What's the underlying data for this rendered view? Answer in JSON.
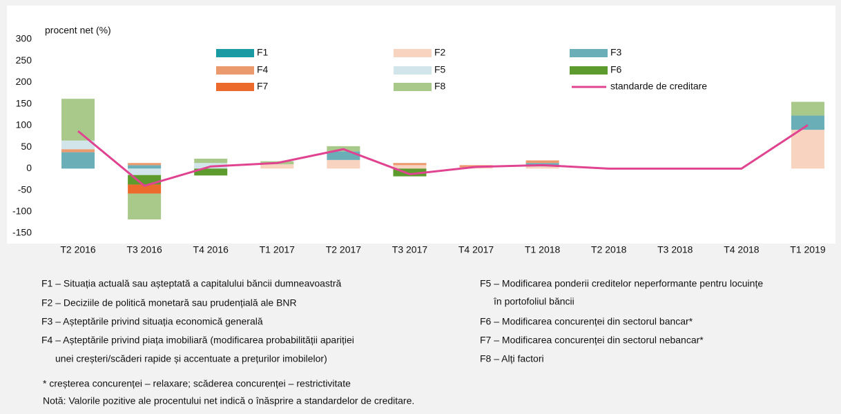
{
  "chart_data": {
    "type": "stacked-bar-line",
    "y_label": "procent net (%)",
    "categories": [
      "T2 2016",
      "T3 2016",
      "T4 2016",
      "T1 2017",
      "T2 2017",
      "T3 2017",
      "T4 2017",
      "T1 2018",
      "T2 2018",
      "T3 2018",
      "T4 2018",
      "T1 2019"
    ],
    "ylim": [
      -150,
      300
    ],
    "yticks": [
      -150,
      -100,
      -50,
      0,
      50,
      100,
      150,
      200,
      250,
      300
    ],
    "grid": false,
    "series": [
      {
        "name": "F1",
        "color": "#1a9ba3",
        "values": [
          0,
          0,
          0,
          0,
          0,
          0,
          0,
          0,
          0,
          0,
          0,
          0
        ]
      },
      {
        "name": "F2",
        "color": "#f8d3c0",
        "values": [
          0,
          0,
          0,
          10,
          20,
          8,
          3,
          5,
          0,
          0,
          0,
          90
        ]
      },
      {
        "name": "F3",
        "color": "#6aaeb8",
        "values": [
          38,
          8,
          0,
          0,
          20,
          0,
          0,
          8,
          0,
          0,
          0,
          33
        ]
      },
      {
        "name": "F4",
        "color": "#eb9a6e",
        "values": [
          7,
          5,
          0,
          0,
          0,
          5,
          5,
          6,
          0,
          0,
          0,
          0
        ]
      },
      {
        "name": "F5",
        "color": "#d2e5ea",
        "values": [
          20,
          -15,
          13,
          0,
          0,
          0,
          0,
          0,
          0,
          0,
          0,
          0
        ]
      },
      {
        "name": "F6",
        "color": "#5e9b2e",
        "values": [
          0,
          -22,
          -16,
          0,
          0,
          -18,
          0,
          0,
          0,
          0,
          0,
          0
        ]
      },
      {
        "name": "F7",
        "color": "#ec6a2c",
        "values": [
          0,
          -21,
          0,
          0,
          0,
          0,
          0,
          0,
          0,
          0,
          0,
          0
        ]
      },
      {
        "name": "F8",
        "color": "#a9c98b",
        "values": [
          97,
          -60,
          10,
          7,
          12,
          0,
          0,
          0,
          0,
          0,
          0,
          32
        ]
      },
      {
        "name": "standarde de creditare",
        "color": "#e0438f",
        "line": true,
        "values": [
          87,
          -40,
          5,
          13,
          45,
          -13,
          4,
          8,
          0,
          0,
          0,
          101
        ]
      }
    ]
  },
  "notes": {
    "left": [
      [
        "F1 – Situația actuală sau așteptată a capitalului băncii dumneavoastră"
      ],
      [
        "F2 – Deciziile de politică monetară sau prudențială ale BNR"
      ],
      [
        "F3 – Așteptările privind situația economică generală"
      ],
      [
        "F4 – Așteptările privind piața imobiliară (modificarea probabilității apariției",
        "unei creșteri/scăderi rapide și accentuate a prețurilor imobilelor)"
      ]
    ],
    "right": [
      [
        "F5 – Modificarea ponderii creditelor neperformante pentru locuințe",
        "în portofoliul băncii"
      ],
      [
        "F6 – Modificarea concurenței din sectorul bancar*"
      ],
      [
        "F7 – Modificarea concurenței din sectorul nebancar*"
      ],
      [
        "F8 – Alți factori"
      ]
    ],
    "footnote": "* creșterea concurenței – relaxare; scăderea concurenței – restrictivitate",
    "note": "Notă: Valorile pozitive ale procentului net indică o înăsprire a standardelor de creditare."
  }
}
